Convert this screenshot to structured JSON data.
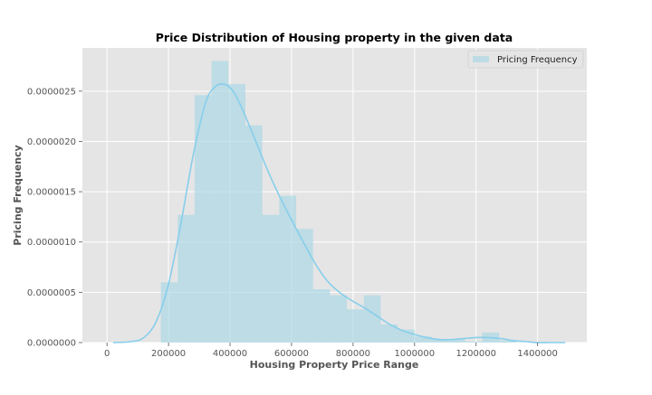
{
  "chart_data": {
    "type": "bar",
    "title": "Price Distribution of Housing property in the given data",
    "xlabel": "Housing Property Price Range",
    "ylabel": "Pricing Frequency",
    "xlim": [
      -80000,
      1560000
    ],
    "ylim": [
      0,
      2.93e-06
    ],
    "xticks": [
      0,
      200000,
      400000,
      600000,
      800000,
      1000000,
      1200000,
      1400000
    ],
    "xtick_labels": [
      "0",
      "200000",
      "400000",
      "600000",
      "800000",
      "1000000",
      "1200000",
      "1400000"
    ],
    "yticks": [
      0,
      5e-07,
      1e-06,
      1.5e-06,
      2e-06,
      2.5e-06
    ],
    "ytick_labels": [
      "0.0000000",
      "0.0000005",
      "0.0000010",
      "0.0000015",
      "0.0000020",
      "0.0000025"
    ],
    "grid": true,
    "legend": {
      "position": "top-right",
      "entries": [
        "Pricing Frequency"
      ]
    },
    "colors": {
      "bar": "#add8e6",
      "kde": "#87ceeb",
      "background": "#e5e5e5",
      "grid": "#ffffff"
    },
    "histogram": {
      "bins": [
        {
          "x0": 175000,
          "x1": 230000,
          "density": 6e-07
        },
        {
          "x0": 230000,
          "x1": 285000,
          "density": 1.27e-06
        },
        {
          "x0": 285000,
          "x1": 340000,
          "density": 2.46e-06
        },
        {
          "x0": 340000,
          "x1": 395000,
          "density": 2.8e-06
        },
        {
          "x0": 395000,
          "x1": 450000,
          "density": 2.57e-06
        },
        {
          "x0": 450000,
          "x1": 505000,
          "density": 2.16e-06
        },
        {
          "x0": 505000,
          "x1": 560000,
          "density": 1.27e-06
        },
        {
          "x0": 560000,
          "x1": 615000,
          "density": 1.46e-06
        },
        {
          "x0": 615000,
          "x1": 670000,
          "density": 1.13e-06
        },
        {
          "x0": 670000,
          "x1": 725000,
          "density": 5.3e-07
        },
        {
          "x0": 725000,
          "x1": 780000,
          "density": 4.7e-07
        },
        {
          "x0": 780000,
          "x1": 835000,
          "density": 3.3e-07
        },
        {
          "x0": 835000,
          "x1": 890000,
          "density": 4.7e-07
        },
        {
          "x0": 890000,
          "x1": 945000,
          "density": 1.8e-07
        },
        {
          "x0": 945000,
          "x1": 1000000,
          "density": 1.3e-07
        },
        {
          "x0": 1000000,
          "x1": 1055000,
          "density": 6e-08
        },
        {
          "x0": 1055000,
          "x1": 1110000,
          "density": 3e-08
        },
        {
          "x0": 1110000,
          "x1": 1165000,
          "density": 3e-08
        },
        {
          "x0": 1165000,
          "x1": 1220000,
          "density": 1e-08
        },
        {
          "x0": 1220000,
          "x1": 1275000,
          "density": 1e-07
        },
        {
          "x0": 1275000,
          "x1": 1330000,
          "density": 2e-08
        }
      ]
    },
    "kde": {
      "x": [
        20000,
        80000,
        120000,
        160000,
        200000,
        240000,
        280000,
        320000,
        350000,
        380000,
        410000,
        440000,
        480000,
        520000,
        560000,
        600000,
        640000,
        680000,
        720000,
        760000,
        800000,
        840000,
        880000,
        920000,
        960000,
        1000000,
        1040000,
        1080000,
        1120000,
        1160000,
        1200000,
        1240000,
        1280000,
        1320000,
        1360000,
        1400000,
        1440000,
        1490000
      ],
      "y": [
        0.0,
        1e-08,
        5e-08,
        2.1e-07,
        5.8e-07,
        1.18e-06,
        1.86e-06,
        2.38e-06,
        2.54e-06,
        2.57e-06,
        2.5e-06,
        2.32e-06,
        2.03e-06,
        1.73e-06,
        1.46e-06,
        1.22e-06,
        9.9e-07,
        7.7e-07,
        6e-07,
        4.9e-07,
        4.1e-07,
        3.4e-07,
        2.6e-07,
        1.8e-07,
        1.2e-07,
        8e-08,
        5e-08,
        3e-08,
        3e-08,
        4e-08,
        5e-08,
        5e-08,
        4e-08,
        2e-08,
        1e-08,
        0.0,
        0.0,
        0.0
      ]
    }
  }
}
